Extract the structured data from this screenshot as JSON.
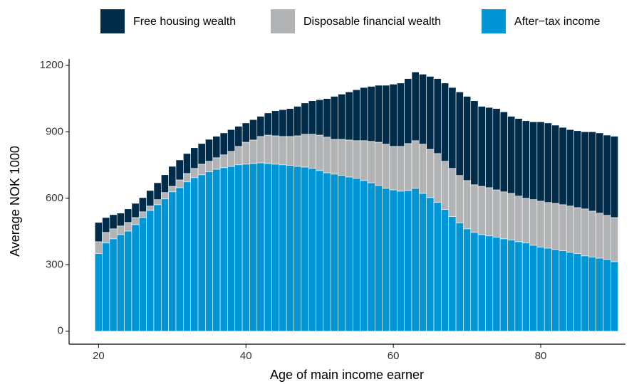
{
  "chart_data": {
    "type": "stacked_bar",
    "x_label": "Age of main income earner",
    "y_label": "Average NOK 1000",
    "x": [
      20,
      21,
      22,
      23,
      24,
      25,
      26,
      27,
      28,
      29,
      30,
      31,
      32,
      33,
      34,
      35,
      36,
      37,
      38,
      39,
      40,
      41,
      42,
      43,
      44,
      45,
      46,
      47,
      48,
      49,
      50,
      51,
      52,
      53,
      54,
      55,
      56,
      57,
      58,
      59,
      60,
      61,
      62,
      63,
      64,
      65,
      66,
      67,
      68,
      69,
      70,
      71,
      72,
      73,
      74,
      75,
      76,
      77,
      78,
      79,
      80,
      81,
      82,
      83,
      84,
      85,
      86,
      87,
      88,
      89,
      90
    ],
    "series": [
      {
        "name": "Free housing wealth",
        "color": "#002b49",
        "values": [
          87,
          67,
          64,
          58,
          61,
          64,
          64,
          70,
          76,
          80,
          90,
          90,
          90,
          93,
          93,
          99,
          97,
          99,
          98,
          91,
          87,
          92,
          91,
          100,
          113,
          121,
          126,
          133,
          141,
          151,
          160,
          174,
          194,
          204,
          217,
          230,
          240,
          248,
          257,
          266,
          281,
          286,
          293,
          310,
          316,
          329,
          338,
          353,
          365,
          377,
          380,
          379,
          361,
          362,
          367,
          361,
          348,
          350,
          350,
          351,
          358,
          359,
          353,
          349,
          345,
          347,
          348,
          358,
          362,
          362,
          367
        ]
      },
      {
        "name": "Disposable financial wealth",
        "color": "#b1b3b5",
        "values": [
          54,
          48,
          45,
          39,
          39,
          32,
          26,
          20,
          23,
          29,
          25,
          35,
          38,
          42,
          48,
          48,
          52,
          58,
          68,
          83,
          99,
          106,
          119,
          128,
          128,
          128,
          131,
          138,
          148,
          154,
          160,
          161,
          157,
          163,
          167,
          170,
          180,
          187,
          195,
          199,
          196,
          202,
          212,
          215,
          222,
          218,
          221,
          218,
          218,
          215,
          218,
          215,
          218,
          218,
          214,
          212,
          211,
          206,
          202,
          206,
          208,
          206,
          208,
          208,
          209,
          208,
          212,
          208,
          203,
          199,
          199
        ]
      },
      {
        "name": "After−tax income",
        "color": "#0096d6",
        "values": [
          350,
          398,
          417,
          436,
          452,
          481,
          513,
          545,
          571,
          597,
          629,
          648,
          674,
          693,
          706,
          719,
          731,
          738,
          744,
          751,
          754,
          757,
          760,
          757,
          754,
          751,
          748,
          744,
          741,
          735,
          725,
          715,
          709,
          703,
          696,
          690,
          680,
          670,
          658,
          645,
          638,
          632,
          635,
          645,
          622,
          603,
          581,
          549,
          517,
          488,
          462,
          446,
          436,
          430,
          424,
          417,
          411,
          404,
          398,
          388,
          379,
          375,
          369,
          363,
          356,
          350,
          340,
          334,
          330,
          324,
          314
        ]
      }
    ],
    "xlim": [
      16,
      91.5
    ],
    "xticks": [
      20,
      40,
      60,
      80
    ],
    "ylim": [
      -58.5,
      1228.5
    ],
    "yticks": [
      0,
      300,
      600,
      900,
      1200
    ],
    "legend": "top"
  }
}
